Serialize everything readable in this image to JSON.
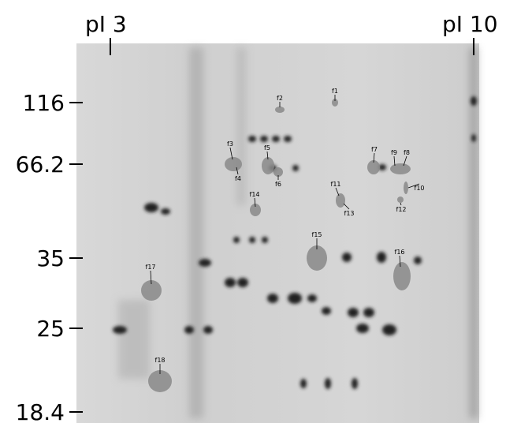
{
  "ph_labels": {
    "left": "pI 3",
    "right": "pI 10"
  },
  "mw_markers": [
    "116",
    "66.2",
    "35",
    "25",
    "18.4"
  ],
  "spots": [
    "f1",
    "f2",
    "f3",
    "f4",
    "f5",
    "f6",
    "f7",
    "f8",
    "f9",
    "f10",
    "f11",
    "f12",
    "f13",
    "f14",
    "f15",
    "f16",
    "f17",
    "f18"
  ]
}
